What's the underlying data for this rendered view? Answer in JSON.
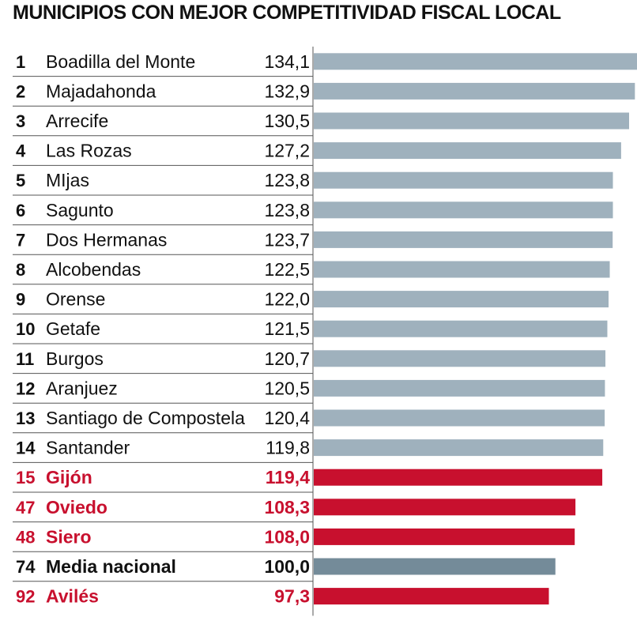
{
  "colors": {
    "regular_bar": "#9fb1bd",
    "highlight": "#c8102e",
    "average_bar": "#748b99",
    "text": "#111111",
    "rule": "#555555"
  },
  "chart_data": {
    "type": "bar",
    "orientation": "horizontal",
    "title": "MUNICIPIOS CON MEJOR COMPETITIVIDAD FISCAL LOCAL",
    "xlabel": "",
    "ylabel": "",
    "xlim": [
      0,
      134.1
    ],
    "grid": false,
    "rows": [
      {
        "rank": "1",
        "name": "Boadilla del Monte",
        "value": 134.1,
        "label": "134,1",
        "style": "regular"
      },
      {
        "rank": "2",
        "name": "Majadahonda",
        "value": 132.9,
        "label": "132,9",
        "style": "regular"
      },
      {
        "rank": "3",
        "name": "Arrecife",
        "value": 130.5,
        "label": "130,5",
        "style": "regular"
      },
      {
        "rank": "4",
        "name": "Las Rozas",
        "value": 127.2,
        "label": "127,2",
        "style": "regular"
      },
      {
        "rank": "5",
        "name": "MIjas",
        "value": 123.8,
        "label": "123,8",
        "style": "regular"
      },
      {
        "rank": "6",
        "name": "Sagunto",
        "value": 123.8,
        "label": "123,8",
        "style": "regular"
      },
      {
        "rank": "7",
        "name": "Dos Hermanas",
        "value": 123.7,
        "label": "123,7",
        "style": "regular"
      },
      {
        "rank": "8",
        "name": "Alcobendas",
        "value": 122.5,
        "label": "122,5",
        "style": "regular"
      },
      {
        "rank": "9",
        "name": "Orense",
        "value": 122.0,
        "label": "122,0",
        "style": "regular"
      },
      {
        "rank": "10",
        "name": "Getafe",
        "value": 121.5,
        "label": "121,5",
        "style": "regular"
      },
      {
        "rank": "11",
        "name": "Burgos",
        "value": 120.7,
        "label": "120,7",
        "style": "regular"
      },
      {
        "rank": "12",
        "name": "Aranjuez",
        "value": 120.5,
        "label": "120,5",
        "style": "regular"
      },
      {
        "rank": "13",
        "name": "Santiago de Compostela",
        "value": 120.4,
        "label": "120,4",
        "style": "regular"
      },
      {
        "rank": "14",
        "name": "Santander",
        "value": 119.8,
        "label": "119,8",
        "style": "regular"
      },
      {
        "rank": "15",
        "name": "Gijón",
        "value": 119.4,
        "label": "119,4",
        "style": "highlight"
      },
      {
        "rank": "47",
        "name": "Oviedo",
        "value": 108.3,
        "label": "108,3",
        "style": "highlight"
      },
      {
        "rank": "48",
        "name": "Siero",
        "value": 108.0,
        "label": "108,0",
        "style": "highlight"
      },
      {
        "rank": "74",
        "name": "Media nacional",
        "value": 100.0,
        "label": "100,0",
        "style": "average"
      },
      {
        "rank": "92",
        "name": "Avilés",
        "value": 97.3,
        "label": "97,3",
        "style": "highlight"
      }
    ]
  }
}
